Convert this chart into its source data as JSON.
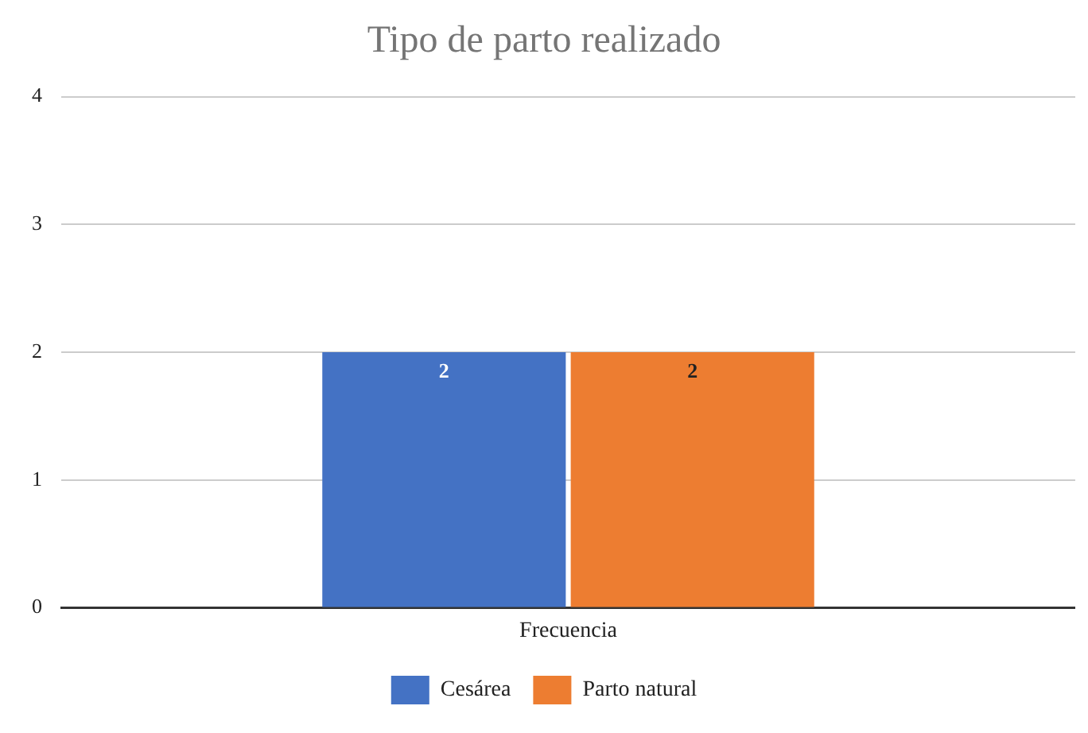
{
  "chart_data": {
    "type": "bar",
    "title": "Tipo de parto realizado",
    "categories": [
      "Frecuencia"
    ],
    "series": [
      {
        "name": "Cesárea",
        "color": "#4472c4",
        "values": [
          2
        ]
      },
      {
        "name": "Parto natural",
        "color": "#ed7d31",
        "values": [
          2
        ]
      }
    ],
    "ylim": [
      0,
      4
    ],
    "yticks": [
      0,
      1,
      2,
      3,
      4
    ],
    "grid": "y",
    "legend": "bottom",
    "data_labels": true
  }
}
